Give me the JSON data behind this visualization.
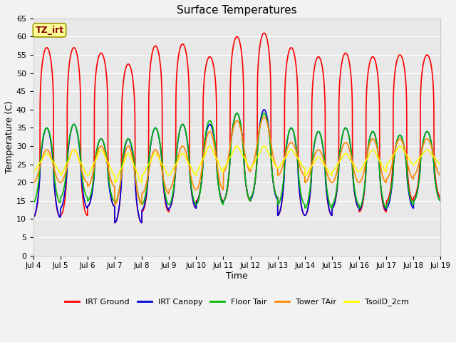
{
  "title": "Surface Temperatures",
  "xlabel": "Time",
  "ylabel": "Temperature (C)",
  "ylim": [
    0,
    65
  ],
  "yticks": [
    0,
    5,
    10,
    15,
    20,
    25,
    30,
    35,
    40,
    45,
    50,
    55,
    60,
    65
  ],
  "background_color": "#f2f2f2",
  "plot_bg_color": "#e8e8e8",
  "series": [
    {
      "label": "IRT Ground",
      "color": "#ff0000",
      "lw": 1.2
    },
    {
      "label": "IRT Canopy",
      "color": "#0000dd",
      "lw": 1.2
    },
    {
      "label": "Floor Tair",
      "color": "#00bb00",
      "lw": 1.2
    },
    {
      "label": "Tower TAir",
      "color": "#ff8800",
      "lw": 1.2
    },
    {
      "label": "TsoilD_2cm",
      "color": "#ffff00",
      "lw": 1.2
    }
  ],
  "annotation_text": "TZ_irt",
  "annotation_color": "#880000",
  "annotation_bg": "#ffff99",
  "annotation_border": "#999900",
  "n_days": 15,
  "irt_ground_max": [
    57,
    57,
    55.5,
    52.5,
    57.5,
    58,
    54.5,
    60,
    61,
    57,
    54.5,
    55.5,
    54.5,
    55,
    55
  ],
  "irt_ground_min": [
    10.5,
    11,
    13.5,
    9,
    12,
    13,
    15,
    15,
    16,
    11,
    11,
    13,
    12,
    15,
    16
  ],
  "canopy_max": [
    35,
    36,
    32,
    32,
    35,
    36,
    36,
    39,
    40,
    35,
    34,
    35,
    34,
    33,
    34
  ],
  "canopy_min": [
    10.5,
    13,
    13.5,
    9,
    12.5,
    13,
    14.5,
    15,
    15.5,
    11,
    11,
    13,
    12.5,
    13,
    15
  ],
  "floor_max": [
    35,
    36,
    32,
    32,
    35,
    36,
    37,
    39,
    39,
    35,
    34,
    35,
    34,
    33,
    34
  ],
  "floor_min": [
    14.5,
    16,
    15,
    14.5,
    14,
    14,
    14,
    15,
    16,
    14,
    13,
    14,
    13,
    14,
    15
  ],
  "tower_max": [
    29,
    29,
    30,
    30,
    29,
    30,
    34,
    37,
    38,
    31,
    29,
    31,
    32,
    32,
    32
  ],
  "tower_min": [
    20,
    20,
    19,
    14,
    17,
    18,
    18,
    23,
    24,
    22,
    20,
    20,
    20,
    21,
    22
  ],
  "soil_max": [
    28,
    29,
    29,
    28,
    28,
    28,
    30,
    30,
    30,
    29,
    27,
    28,
    29,
    30,
    29
  ],
  "soil_min": [
    23,
    22,
    22,
    20,
    22,
    22,
    23,
    24,
    24,
    24,
    22,
    23,
    23,
    25,
    25
  ]
}
